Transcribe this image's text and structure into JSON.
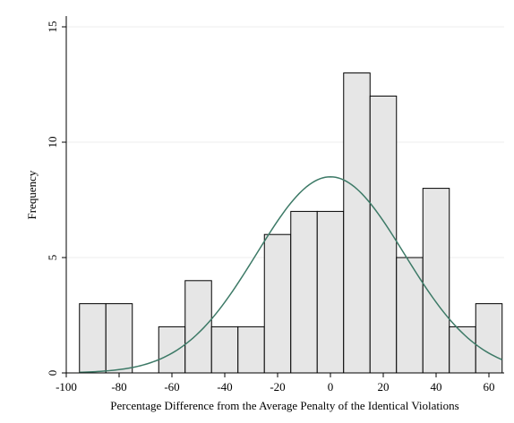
{
  "chart_data": {
    "type": "bar",
    "subtype": "histogram",
    "title": "",
    "xlabel": "Percentage Difference from the Average Penalty of the Identical Violations",
    "ylabel": "Frequency",
    "xlim": [
      -100,
      65
    ],
    "ylim": [
      0,
      15
    ],
    "xticks": [
      -100,
      -80,
      -60,
      -40,
      -20,
      0,
      20,
      40,
      60
    ],
    "yticks": [
      0,
      5,
      10,
      15
    ],
    "grid": true,
    "legend": "none",
    "bins": [
      {
        "x0": -95,
        "x1": -85,
        "count": 3
      },
      {
        "x0": -85,
        "x1": -75,
        "count": 3
      },
      {
        "x0": -65,
        "x1": -55,
        "count": 2
      },
      {
        "x0": -55,
        "x1": -45,
        "count": 4
      },
      {
        "x0": -45,
        "x1": -35,
        "count": 2
      },
      {
        "x0": -35,
        "x1": -25,
        "count": 2
      },
      {
        "x0": -25,
        "x1": -15,
        "count": 6
      },
      {
        "x0": -15,
        "x1": -5,
        "count": 7
      },
      {
        "x0": -5,
        "x1": 5,
        "count": 7
      },
      {
        "x0": 5,
        "x1": 15,
        "count": 13
      },
      {
        "x0": 15,
        "x1": 25,
        "count": 12
      },
      {
        "x0": 25,
        "x1": 35,
        "count": 5
      },
      {
        "x0": 35,
        "x1": 45,
        "count": 8
      },
      {
        "x0": 45,
        "x1": 55,
        "count": 2
      },
      {
        "x0": 55,
        "x1": 65,
        "count": 3
      }
    ],
    "normal_curve": {
      "mean": 0,
      "sd": 28,
      "peak": 8.5,
      "x_range": [
        -95,
        65
      ]
    },
    "colors": {
      "bar_fill": "#e6e6e6",
      "bar_stroke": "#000000",
      "curve": "#3d7a67",
      "grid": "#eeeeee",
      "axis": "#000000"
    }
  }
}
